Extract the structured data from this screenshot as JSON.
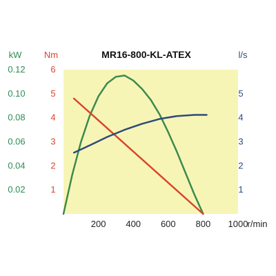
{
  "chart_data": {
    "type": "line",
    "title": "MR16-800-KL-ATEX",
    "plot_background": "#f7f5b6",
    "x_axis": {
      "unit_label": "r/min",
      "range": [
        0,
        1000
      ],
      "ticks": [
        200,
        400,
        600,
        800,
        1000
      ],
      "tick_labels": [
        "200",
        "400",
        "600",
        "800",
        "1000"
      ]
    },
    "y_axes": [
      {
        "id": "kw",
        "unit_label": "kW",
        "color": "#2e8b57",
        "range": [
          0,
          0.12
        ],
        "ticks": [
          0.02,
          0.04,
          0.06,
          0.08,
          0.1,
          0.12
        ],
        "tick_labels": [
          "0.02",
          "0.04",
          "0.06",
          "0.08",
          "0.10",
          "0.12"
        ]
      },
      {
        "id": "nm",
        "unit_label": "Nm",
        "color": "#d9462c",
        "range": [
          0,
          6
        ],
        "ticks": [
          1,
          2,
          3,
          4,
          5,
          6
        ],
        "tick_labels": [
          "1",
          "2",
          "3",
          "4",
          "5",
          "6"
        ]
      },
      {
        "id": "ls",
        "unit_label": "l/s",
        "color": "#2d4a7a",
        "range": [
          0,
          6
        ],
        "ticks": [
          1,
          2,
          3,
          4,
          5
        ],
        "tick_labels": [
          "1",
          "2",
          "3",
          "4",
          "5"
        ]
      }
    ],
    "series": [
      {
        "axis": "kw",
        "color": "#3a8a4e",
        "x": [
          0,
          50,
          100,
          150,
          200,
          250,
          300,
          350,
          400,
          450,
          500,
          550,
          600,
          650,
          700,
          750,
          800
        ],
        "y": [
          0,
          0.0326,
          0.0598,
          0.0815,
          0.0978,
          0.1087,
          0.1141,
          0.1152,
          0.111,
          0.104,
          0.0949,
          0.0829,
          0.068,
          0.0515,
          0.0338,
          0.016,
          0
        ]
      },
      {
        "axis": "nm",
        "color": "#d9462c",
        "x": [
          60,
          800
        ],
        "y": [
          4.8,
          0
        ]
      },
      {
        "axis": "ls",
        "color": "#2d4a7a",
        "x": [
          60,
          150,
          250,
          350,
          450,
          550,
          650,
          750,
          820
        ],
        "y": [
          2.55,
          2.85,
          3.2,
          3.5,
          3.75,
          3.95,
          4.07,
          4.12,
          4.12
        ]
      }
    ]
  }
}
